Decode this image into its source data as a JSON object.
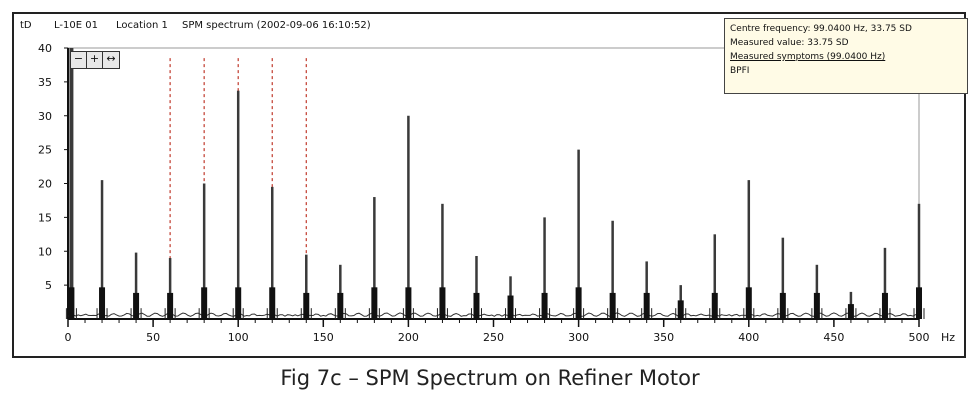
{
  "header": {
    "unit": "tD",
    "identity": "L-10E 01",
    "position": "Location 1",
    "measurement": "SPM spectrum (2002-09-06 16:10:52)"
  },
  "infobox": {
    "line1": "Centre frequency: 99.0400 Hz, 33.75 SD",
    "line2": "Measured value: 33.75 SD",
    "line3": "Measured symptoms (99.0400 Hz)",
    "line4": "BPFI"
  },
  "zoom_controls": {
    "minus_label": "−",
    "zoom_label": "+",
    "pan_label": "↔"
  },
  "chart_data": {
    "type": "bar",
    "xlabel": "Hz",
    "ylabel": "tD",
    "xlim": [
      0,
      500
    ],
    "ylim": [
      0,
      40
    ],
    "x_ticks": [
      0,
      50,
      100,
      150,
      200,
      250,
      300,
      350,
      400,
      450,
      500
    ],
    "y_ticks": [
      5,
      10,
      15,
      20,
      25,
      30,
      35,
      40
    ],
    "marker_lines_hz": [
      60,
      80,
      100,
      120,
      140
    ],
    "peaks": [
      {
        "x": 2,
        "y": 40
      },
      {
        "x": 20,
        "y": 20.5
      },
      {
        "x": 40,
        "y": 9.8
      },
      {
        "x": 60,
        "y": 9
      },
      {
        "x": 80,
        "y": 20
      },
      {
        "x": 100,
        "y": 33.7
      },
      {
        "x": 120,
        "y": 19.5
      },
      {
        "x": 140,
        "y": 9.5
      },
      {
        "x": 160,
        "y": 8
      },
      {
        "x": 180,
        "y": 18
      },
      {
        "x": 200,
        "y": 30
      },
      {
        "x": 220,
        "y": 17
      },
      {
        "x": 240,
        "y": 9.3
      },
      {
        "x": 260,
        "y": 6.3
      },
      {
        "x": 280,
        "y": 15
      },
      {
        "x": 300,
        "y": 25
      },
      {
        "x": 320,
        "y": 14.5
      },
      {
        "x": 340,
        "y": 8.5
      },
      {
        "x": 360,
        "y": 5
      },
      {
        "x": 380,
        "y": 12.5
      },
      {
        "x": 400,
        "y": 20.5
      },
      {
        "x": 420,
        "y": 12
      },
      {
        "x": 440,
        "y": 8
      },
      {
        "x": 460,
        "y": 4
      },
      {
        "x": 480,
        "y": 10.5
      },
      {
        "x": 500,
        "y": 17
      }
    ]
  },
  "caption": "Fig 7c – SPM Spectrum on Refiner Motor"
}
